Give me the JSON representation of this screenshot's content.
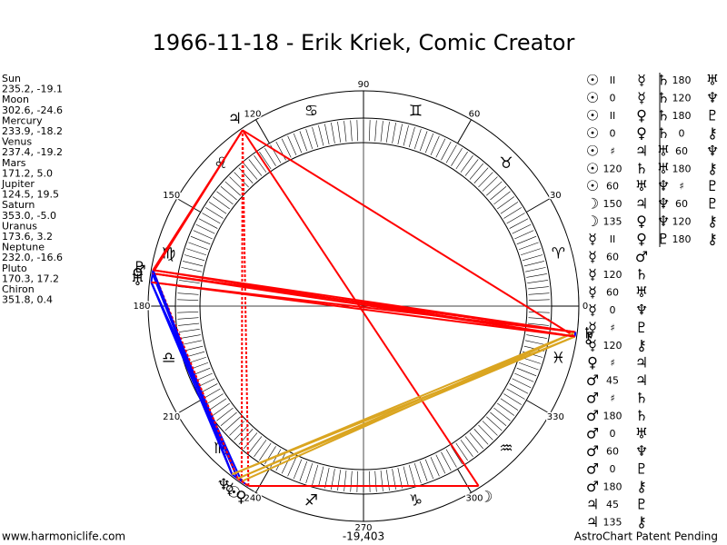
{
  "header": {
    "title": "1966-11-18 - Erik Kriek, Comic Creator"
  },
  "planets": [
    {
      "name": "Sun",
      "coords": "235.2, -19.1",
      "glyph": "☉"
    },
    {
      "name": "Moon",
      "coords": "302.6, -24.6",
      "glyph": "☽"
    },
    {
      "name": "Mercury",
      "coords": "233.9, -18.2",
      "glyph": "☿"
    },
    {
      "name": "Venus",
      "coords": "237.4, -19.2",
      "glyph": "♀"
    },
    {
      "name": "Mars",
      "coords": "171.2, 5.0",
      "glyph": "♂"
    },
    {
      "name": "Jupiter",
      "coords": "124.5, 19.5",
      "glyph": "♃"
    },
    {
      "name": "Saturn",
      "coords": "353.0, -5.0",
      "glyph": "♄"
    },
    {
      "name": "Uranus",
      "coords": "173.6, 3.2",
      "glyph": "♅"
    },
    {
      "name": "Neptune",
      "coords": "232.0, -16.6",
      "glyph": "♆"
    },
    {
      "name": "Pluto",
      "coords": "170.3, 17.2",
      "glyph": "♇"
    },
    {
      "name": "Chiron",
      "coords": "351.8, 0.4",
      "glyph": "⚷"
    }
  ],
  "zodiac": [
    "♈",
    "♉",
    "♊",
    "♋",
    "♌",
    "♍",
    "♎",
    "♏",
    "♐",
    "♑",
    "♒",
    "♓"
  ],
  "degree_labels": [
    0,
    30,
    60,
    90,
    120,
    150,
    180,
    210,
    240,
    270,
    300,
    330
  ],
  "aspects": {
    "left": [
      {
        "cells": [
          "☉",
          "II",
          "☿"
        ],
        "color": "#ff0000",
        "dashed": true
      },
      {
        "cells": [
          "☉",
          "0",
          "☿"
        ],
        "color": "#0000ff",
        "dashed": false
      },
      {
        "cells": [
          "☉",
          "II",
          "♀"
        ],
        "color": "#ff0000",
        "dashed": true
      },
      {
        "cells": [
          "☉",
          "0",
          "♀"
        ],
        "color": "#0000ff",
        "dashed": false
      },
      {
        "cells": [
          "☉",
          "♯",
          "♃"
        ],
        "color": "#ff0000",
        "dashed": true
      },
      {
        "cells": [
          "☉",
          "120",
          "♄"
        ],
        "color": "#daa520",
        "dashed": false
      },
      {
        "cells": [
          "☉",
          "60",
          "♅"
        ],
        "color": "#0000ff",
        "dashed": false
      },
      {
        "cells": [
          "☽",
          "150",
          "♃"
        ],
        "color": "#ff0000",
        "dashed": false
      },
      {
        "cells": [
          "☽",
          "135",
          "♀"
        ],
        "color": "#ff0000",
        "dashed": false
      },
      {
        "cells": [
          "☿",
          "II",
          "♀"
        ],
        "color": "#ff0000",
        "dashed": true
      },
      {
        "cells": [
          "☿",
          "60",
          "♂"
        ],
        "color": "#0000ff",
        "dashed": false
      },
      {
        "cells": [
          "☿",
          "120",
          "♄"
        ],
        "color": "#daa520",
        "dashed": false
      },
      {
        "cells": [
          "☿",
          "60",
          "♅"
        ],
        "color": "#0000ff",
        "dashed": false
      },
      {
        "cells": [
          "☿",
          "0",
          "♆"
        ],
        "color": "#0000ff",
        "dashed": false
      },
      {
        "cells": [
          "☿",
          "♯",
          "♇"
        ],
        "color": "#ff0000",
        "dashed": true
      },
      {
        "cells": [
          "☿",
          "120",
          "⚷"
        ],
        "color": "#daa520",
        "dashed": false
      },
      {
        "cells": [
          "♀",
          "♯",
          "♃"
        ],
        "color": "#ff0000",
        "dashed": true
      },
      {
        "cells": [
          "♂",
          "45",
          "♃"
        ],
        "color": "#ff0000",
        "dashed": false
      },
      {
        "cells": [
          "♂",
          "♯",
          "♄"
        ],
        "color": "#ff0000",
        "dashed": true
      },
      {
        "cells": [
          "♂",
          "180",
          "♄"
        ],
        "color": "#ff0000",
        "dashed": false
      },
      {
        "cells": [
          "♂",
          "0",
          "♅"
        ],
        "color": "#0000ff",
        "dashed": false
      },
      {
        "cells": [
          "♂",
          "60",
          "♆"
        ],
        "color": "#0000ff",
        "dashed": false
      },
      {
        "cells": [
          "♂",
          "0",
          "♇"
        ],
        "color": "#0000ff",
        "dashed": false
      },
      {
        "cells": [
          "♂",
          "180",
          "⚷"
        ],
        "color": "#ff0000",
        "dashed": false
      },
      {
        "cells": [
          "♃",
          "45",
          "♇"
        ],
        "color": "#ff0000",
        "dashed": false
      },
      {
        "cells": [
          "♃",
          "135",
          "⚷"
        ],
        "color": "#ff0000",
        "dashed": false
      }
    ],
    "right": [
      {
        "cells": [
          "♄",
          "180",
          "♅"
        ],
        "color": "#ff0000",
        "dashed": false
      },
      {
        "cells": [
          "♄",
          "120",
          "♆"
        ],
        "color": "#daa520",
        "dashed": false
      },
      {
        "cells": [
          "♄",
          "180",
          "♇"
        ],
        "color": "#ff0000",
        "dashed": false
      },
      {
        "cells": [
          "♄",
          "0",
          "⚷"
        ],
        "color": "#0000ff",
        "dashed": false
      },
      {
        "cells": [
          "♅",
          "60",
          "♆"
        ],
        "color": "#0000ff",
        "dashed": false
      },
      {
        "cells": [
          "♅",
          "180",
          "⚷"
        ],
        "color": "#ff0000",
        "dashed": false
      },
      {
        "cells": [
          "♆",
          "♯",
          "♇"
        ],
        "color": "#ff0000",
        "dashed": true
      },
      {
        "cells": [
          "♆",
          "60",
          "♇"
        ],
        "color": "#0000ff",
        "dashed": false
      },
      {
        "cells": [
          "♆",
          "120",
          "⚷"
        ],
        "color": "#daa520",
        "dashed": false
      },
      {
        "cells": [
          "♇",
          "180",
          "⚷"
        ],
        "color": "#ff0000",
        "dashed": false
      }
    ]
  },
  "footer": {
    "site": "www.harmoniclife.com",
    "center": "-19,403",
    "right": "AstroChart Patent Pending"
  }
}
